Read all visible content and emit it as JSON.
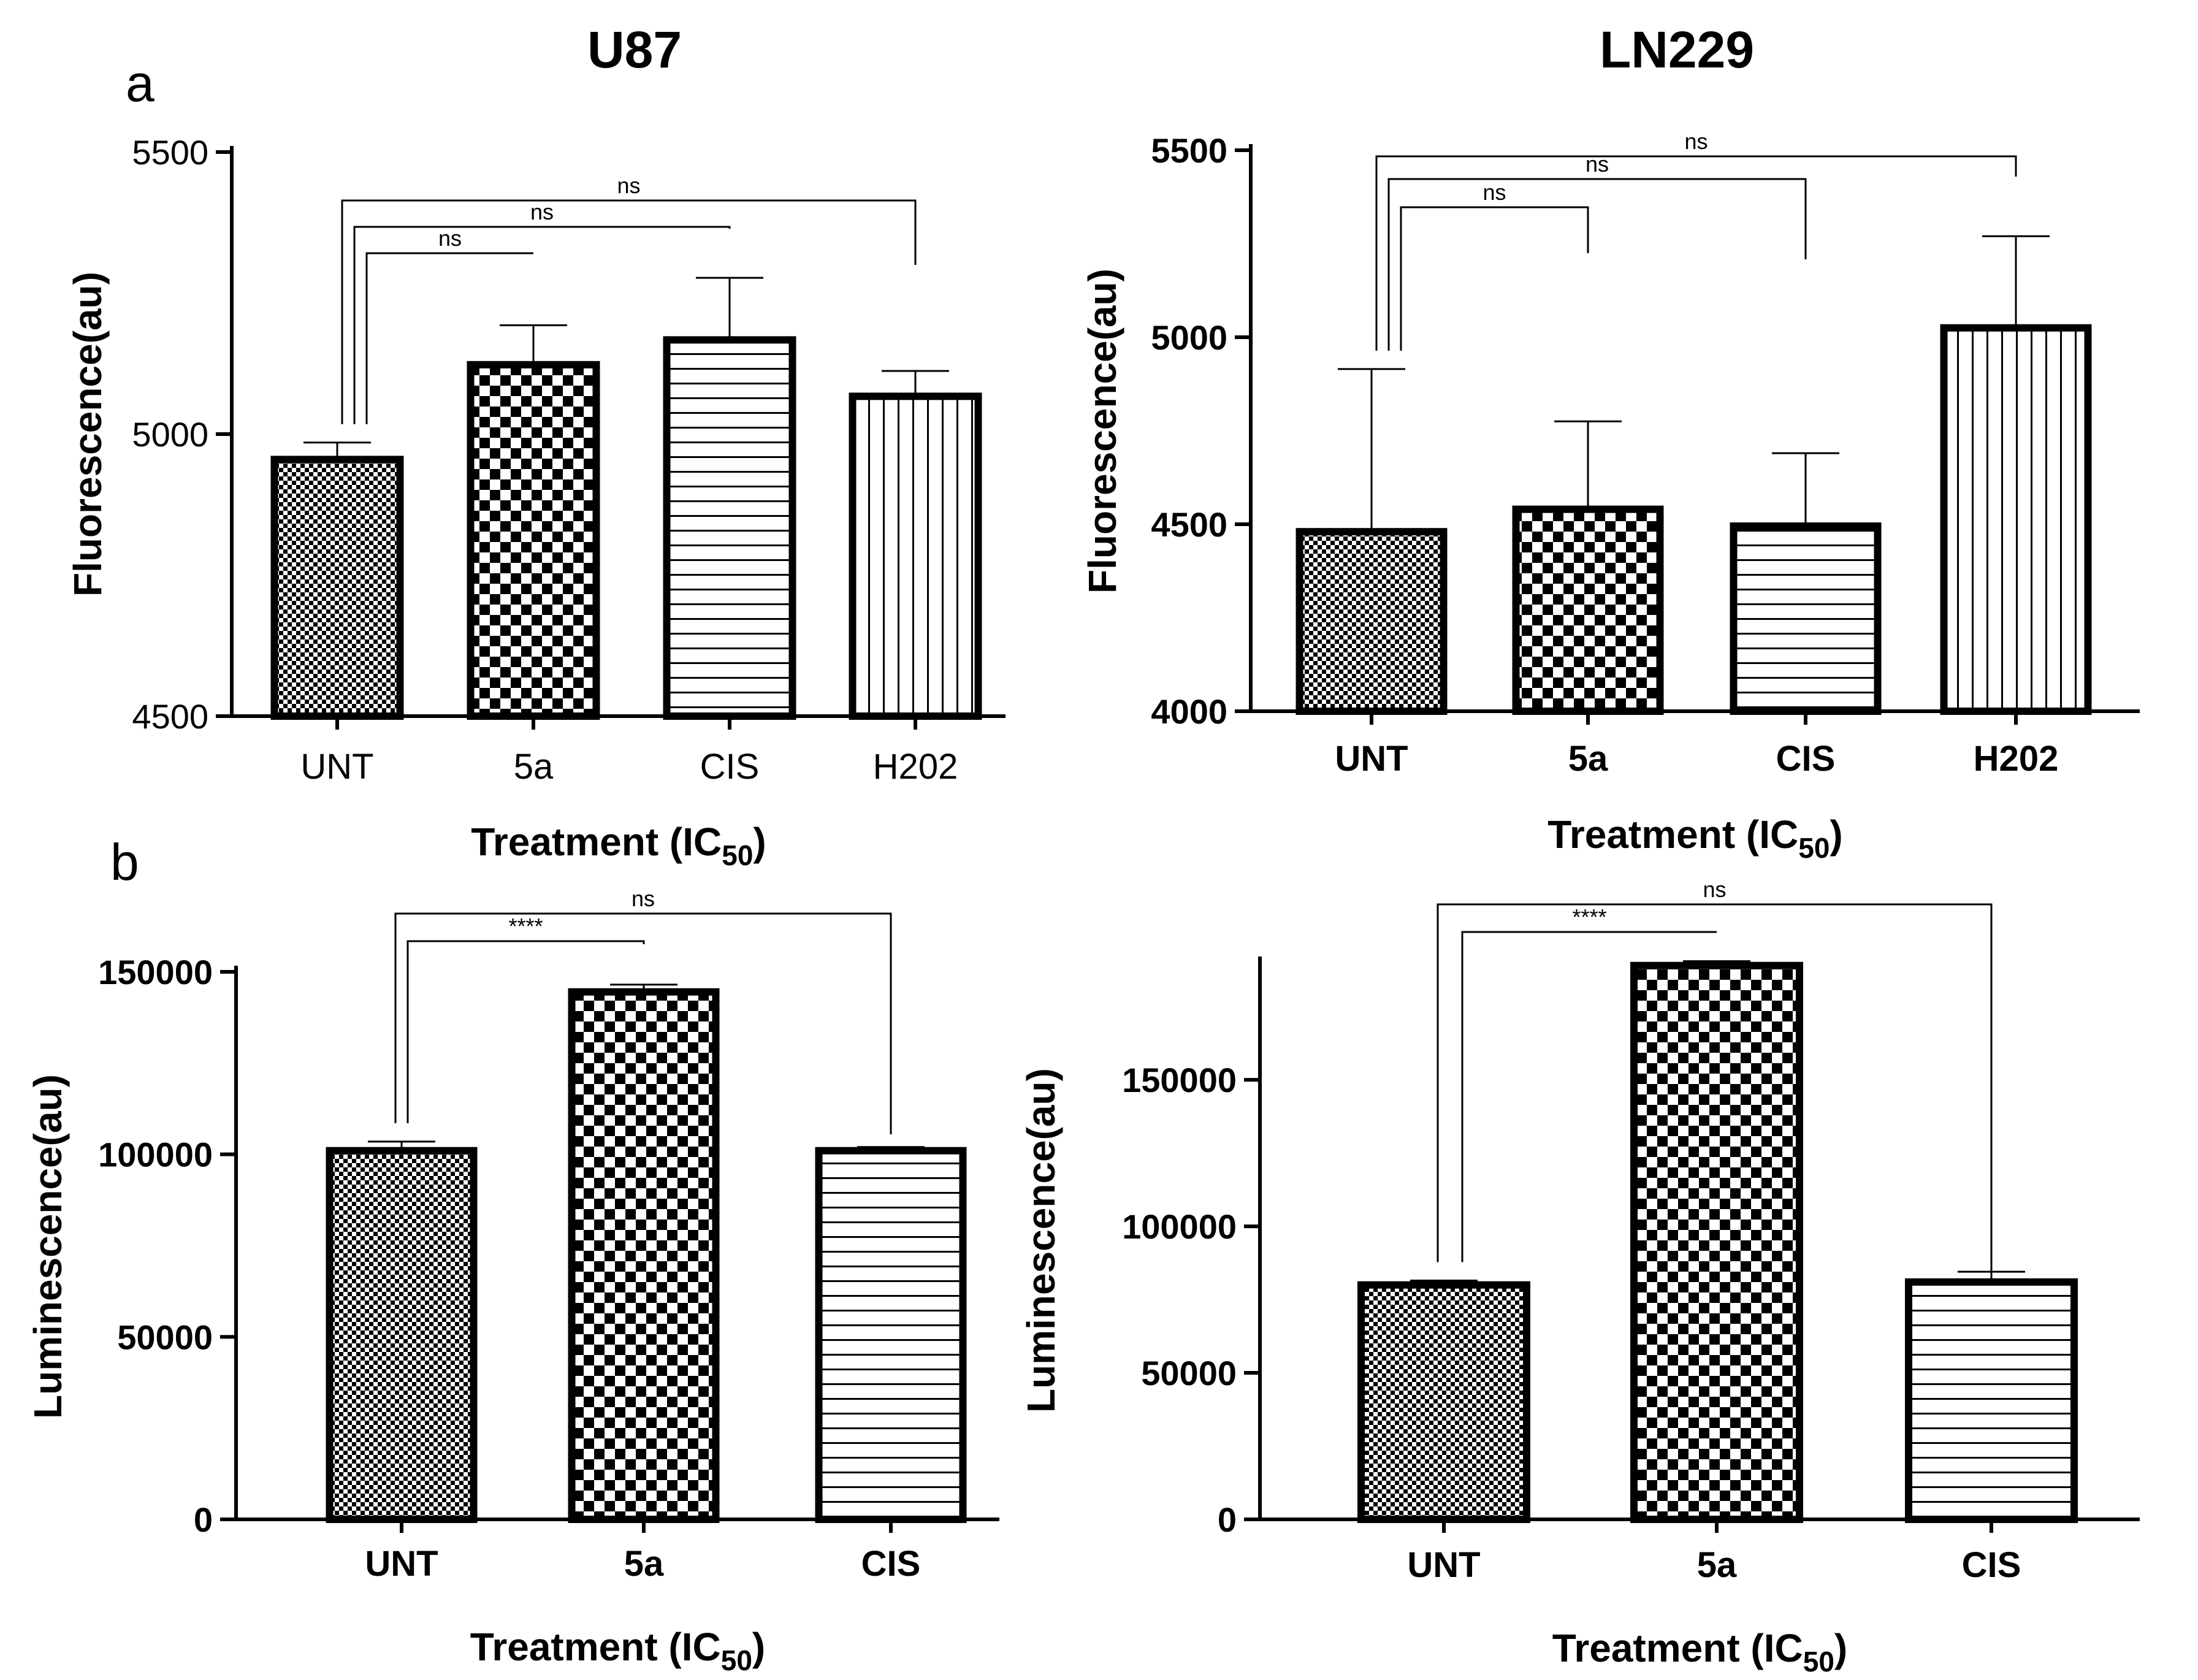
{
  "figure": {
    "col_titles": [
      "U87",
      "LN229"
    ],
    "panel_letters": [
      "a",
      "b"
    ],
    "xlabel_prefix": "Treatment (IC",
    "xlabel_subscript": "50",
    "xlabel_suffix": ")"
  },
  "colors": {
    "bar_stroke": "#000000",
    "axis": "#000000",
    "background": "#ffffff"
  },
  "chart_data": [
    {
      "id": "a-U87",
      "type": "bar",
      "title": "U87",
      "ylabel": "Fluorescence(au)",
      "xlabel": "Treatment (IC50)",
      "categories": [
        "UNT",
        "5a",
        "CIS",
        "H202"
      ],
      "values": [
        4955,
        5123,
        5167,
        5067
      ],
      "errors": [
        30,
        70,
        110,
        45
      ],
      "patterns": [
        "fine-check",
        "check",
        "hlines",
        "vlines"
      ],
      "ylim": [
        4500,
        5500
      ],
      "yticks": [
        4500,
        5000,
        5500
      ],
      "grid": false,
      "bold_ticks": false,
      "comparisons": [
        {
          "from": 0,
          "to": 1,
          "label": "ns"
        },
        {
          "from": 0,
          "to": 2,
          "label": "ns"
        },
        {
          "from": 0,
          "to": 3,
          "label": "ns"
        }
      ]
    },
    {
      "id": "a-LN229",
      "type": "bar",
      "title": "LN229",
      "ylabel": "Fluorescence(au)",
      "xlabel": "Treatment (IC50)",
      "categories": [
        "UNT",
        "5a",
        "CIS",
        "H202"
      ],
      "values": [
        4480,
        4540,
        4495,
        5025
      ],
      "errors": [
        435,
        235,
        195,
        245
      ],
      "patterns": [
        "fine-check",
        "check",
        "hlines",
        "vlines"
      ],
      "ylim": [
        4000,
        5500
      ],
      "yticks": [
        4000,
        4500,
        5000,
        5500
      ],
      "grid": false,
      "bold_ticks": true,
      "comparisons": [
        {
          "from": 0,
          "to": 1,
          "label": "ns"
        },
        {
          "from": 0,
          "to": 2,
          "label": "ns"
        },
        {
          "from": 0,
          "to": 3,
          "label": "ns"
        }
      ]
    },
    {
      "id": "b-U87",
      "type": "bar",
      "ylabel": "Luminescence(au)",
      "xlabel": "Treatment (IC50)",
      "categories": [
        "UNT",
        "5a",
        "CIS"
      ],
      "values": [
        101000,
        144500,
        101000
      ],
      "errors": [
        2500,
        2000,
        1000
      ],
      "patterns": [
        "fine-check",
        "check",
        "hlines"
      ],
      "ylim": [
        0,
        150000
      ],
      "yticks": [
        0,
        50000,
        100000,
        150000
      ],
      "grid": false,
      "bold_ticks": true,
      "comparisons": [
        {
          "from": 0,
          "to": 1,
          "label": "****"
        },
        {
          "from": 0,
          "to": 2,
          "label": "ns"
        }
      ]
    },
    {
      "id": "b-LN229",
      "type": "bar",
      "ylabel": "Luminescence(au)",
      "xlabel": "Treatment (IC50)",
      "categories": [
        "UNT",
        "5a",
        "CIS"
      ],
      "values": [
        80000,
        189000,
        81000
      ],
      "errors": [
        1500,
        1500,
        3500
      ],
      "patterns": [
        "fine-check",
        "check",
        "hlines"
      ],
      "ylim": [
        0,
        190000
      ],
      "yticks": [
        0,
        50000,
        100000,
        150000
      ],
      "grid": false,
      "bold_ticks": true,
      "comparisons": [
        {
          "from": 0,
          "to": 1,
          "label": "****"
        },
        {
          "from": 0,
          "to": 2,
          "label": "ns"
        }
      ]
    }
  ]
}
